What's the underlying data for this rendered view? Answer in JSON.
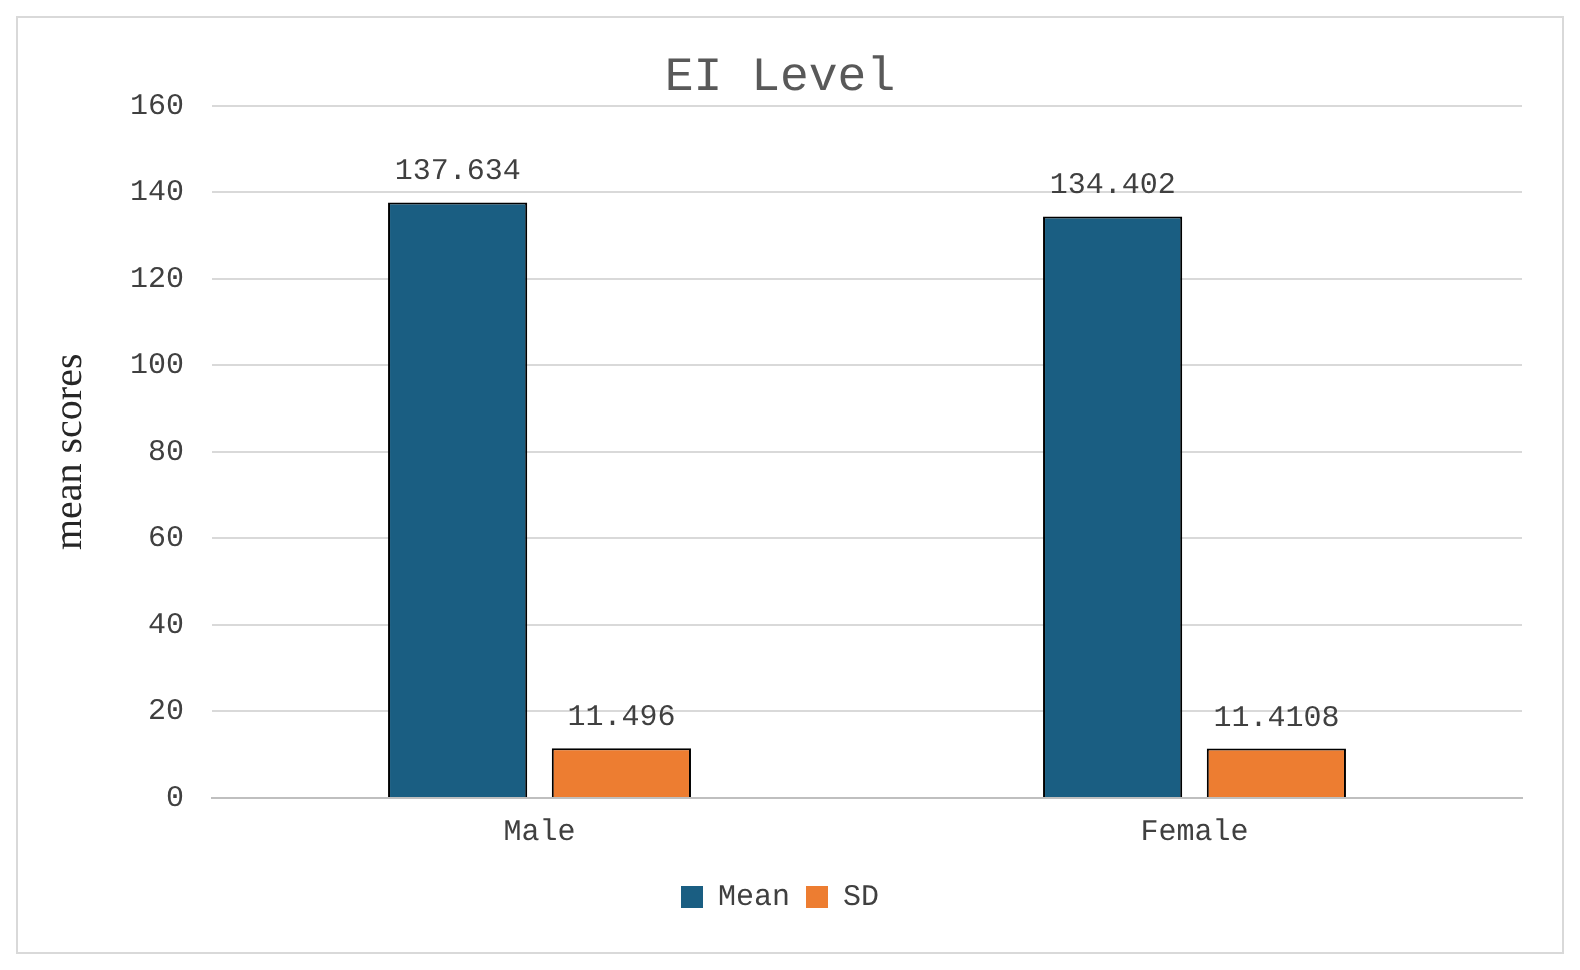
{
  "chart_data": {
    "type": "bar",
    "title": "EI Level",
    "ylabel": "mean scores",
    "categories": [
      "Male",
      "Female"
    ],
    "series": [
      {
        "name": "Mean",
        "color": "#1a5e82",
        "values": [
          137.634,
          134.402
        ],
        "value_labels": [
          "137.634",
          "134.402"
        ]
      },
      {
        "name": "SD",
        "color": "#ed7d31",
        "values": [
          11.496,
          11.4108
        ],
        "value_labels": [
          "11.496",
          "11.4108"
        ]
      }
    ],
    "ylim": [
      0,
      160
    ],
    "yticks": [
      0,
      20,
      40,
      60,
      80,
      100,
      120,
      140,
      160
    ],
    "grid": "y",
    "legend": "bottom"
  }
}
